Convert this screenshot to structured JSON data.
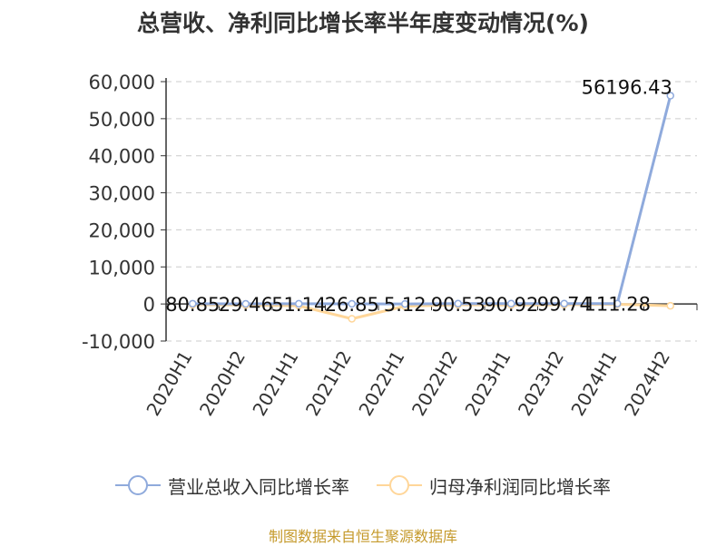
{
  "chart_data": {
    "type": "line",
    "title": "总营收、净利同比增长率半年度变动情况(%)",
    "categories": [
      "2020H1",
      "2020H2",
      "2021H1",
      "2021H2",
      "2022H1",
      "2022H2",
      "2023H1",
      "2023H2",
      "2024H1",
      "2024H2"
    ],
    "series": [
      {
        "name": "营业总收入同比增长率",
        "values": [
          80.85,
          29.46,
          51.14,
          26.85,
          5.12,
          90.53,
          90.92,
          99.74,
          111.28,
          56196.43
        ]
      },
      {
        "name": "归母净利润同比增长率",
        "values": [
          -200,
          -300,
          -500,
          -4000,
          -600,
          -200,
          -300,
          -200,
          -100,
          -500
        ]
      }
    ],
    "data_labels": [
      "80.85",
      "29.46",
      "51.14",
      "26.85",
      "5.12",
      "90.53",
      "90.92",
      "99.74",
      "111.28",
      "56196.43"
    ],
    "yticks": [
      "60,000",
      "50,000",
      "40,000",
      "30,000",
      "20,000",
      "10,000",
      "0",
      "-10,000"
    ],
    "ylim": [
      -10000,
      60000
    ],
    "grid": true,
    "legend_position": "bottom",
    "colors": {
      "series1": "#8faadc",
      "series2": "#ffd699"
    },
    "source": "制图数据来自恒生聚源数据库"
  }
}
